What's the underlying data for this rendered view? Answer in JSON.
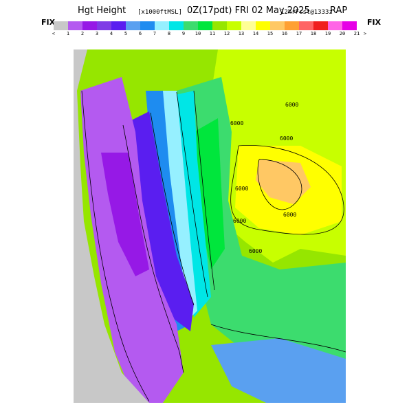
{
  "title": {
    "main_left": "Hgt Height",
    "units": "[x1000ftMSL]",
    "time": "0Z(17pdt) FRI 02 May 2025",
    "forecast": "12hrFcst@1333z",
    "model": "RAP"
  },
  "colorbar": {
    "fix_left": "FIX",
    "fix_right": "FIX",
    "lt": "<",
    "gt": ">",
    "labels": [
      "1",
      "2",
      "3",
      "4",
      "5",
      "6",
      "7",
      "8",
      "9",
      "10",
      "11",
      "12",
      "13",
      "14",
      "15",
      "16",
      "17",
      "18",
      "19",
      "20",
      "21"
    ],
    "colors": [
      "#c8c8c8",
      "#b45af0",
      "#9619e6",
      "#7f3ce6",
      "#5a1ef0",
      "#5aa0f0",
      "#1e8cf0",
      "#96f0ff",
      "#00e6e6",
      "#3cdc6e",
      "#00e63c",
      "#96e600",
      "#c8ff00",
      "#ffff96",
      "#ffff00",
      "#ffc864",
      "#ffa032",
      "#ff6464",
      "#f01e1e",
      "#ff64e6",
      "#e600e6"
    ]
  },
  "map": {
    "contour_labels": [
      "6000",
      "6000",
      "6000",
      "6000",
      "6000",
      "6000",
      "6000"
    ],
    "land_colors": {
      "ocean": "#c8c8c8",
      "low": "#b45af0",
      "valley": "#5a1ef0",
      "foothill": "#1e8cf0",
      "mid": "#00e63c",
      "high": "#c8ff00",
      "peak": "#ffc864"
    }
  }
}
